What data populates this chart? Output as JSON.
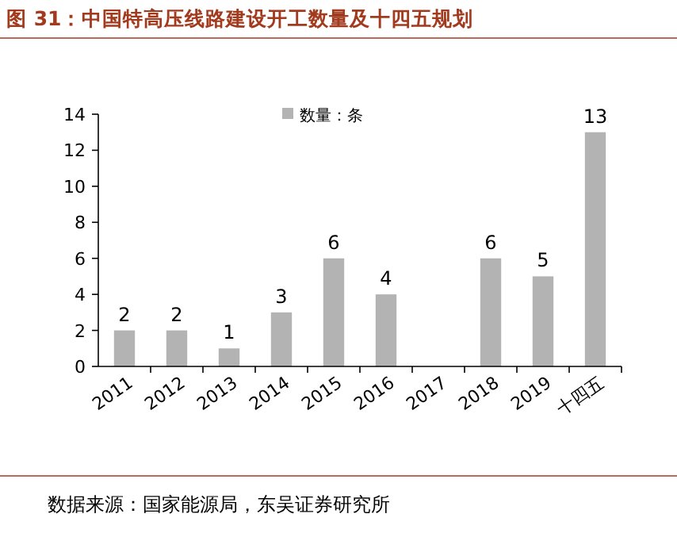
{
  "chart_data": {
    "type": "bar",
    "title": "图 31：中国特高压线路建设开工数量及十四五规划",
    "categories": [
      "2011",
      "2012",
      "2013",
      "2014",
      "2015",
      "2016",
      "2017",
      "2018",
      "2019",
      "十四五"
    ],
    "series": [
      {
        "name": "数量：条",
        "color": "#b3b3b3",
        "values": [
          2,
          2,
          1,
          3,
          6,
          4,
          null,
          6,
          5,
          13
        ]
      }
    ],
    "ylim": [
      0,
      14
    ],
    "yticks": [
      0,
      2,
      4,
      6,
      8,
      10,
      12,
      14
    ],
    "grid": false,
    "legend": "top",
    "data_labels": true,
    "annotations": [
      "数据来源：国家能源局，东吴证券研究所"
    ]
  }
}
